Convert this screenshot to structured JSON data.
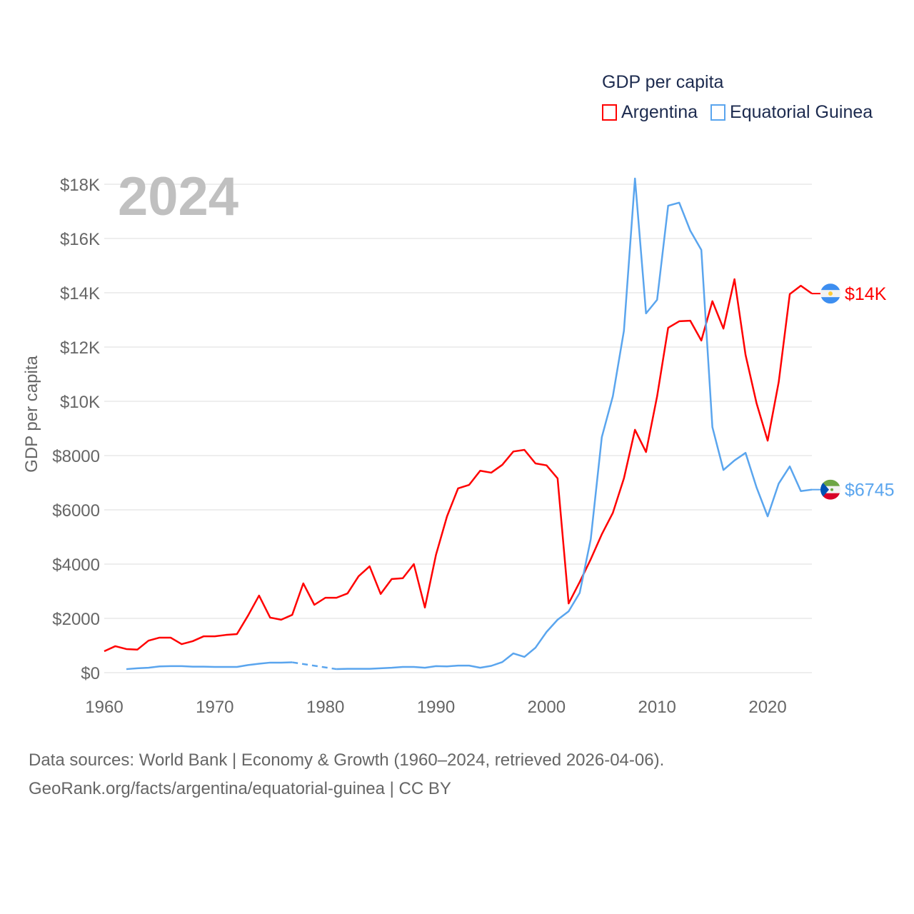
{
  "chart_data": {
    "type": "line",
    "title": "GDP per capita",
    "year_label": "2024",
    "xlabel": "",
    "ylabel": "GDP per capita",
    "xlim": [
      1960,
      2024
    ],
    "ylim": [
      0,
      18000
    ],
    "x_ticks": [
      1960,
      1970,
      1980,
      1990,
      2000,
      2010,
      2020
    ],
    "y_ticks": [
      {
        "value": 0,
        "label": "$0"
      },
      {
        "value": 2000,
        "label": "$2000"
      },
      {
        "value": 4000,
        "label": "$4000"
      },
      {
        "value": 6000,
        "label": "$6000"
      },
      {
        "value": 8000,
        "label": "$8000"
      },
      {
        "value": 10000,
        "label": "$10K"
      },
      {
        "value": 12000,
        "label": "$12K"
      },
      {
        "value": 14000,
        "label": "$14K"
      },
      {
        "value": 16000,
        "label": "$16K"
      },
      {
        "value": 18000,
        "label": "$18K"
      }
    ],
    "grid": true,
    "legend_position": "top-right",
    "series": [
      {
        "name": "Argentina",
        "color": "#ff0000",
        "end_label": "$14K",
        "flag": "argentina-flag",
        "start_year": 1960,
        "values": [
          790,
          975,
          870,
          850,
          1180,
          1290,
          1290,
          1050,
          1160,
          1340,
          1340,
          1390,
          1420,
          2100,
          2840,
          2030,
          1950,
          2130,
          3290,
          2500,
          2760,
          2760,
          2920,
          3550,
          3920,
          2900,
          3450,
          3480,
          4000,
          2400,
          4340,
          5760,
          6790,
          6920,
          7440,
          7370,
          7660,
          8150,
          8210,
          7710,
          7640,
          7160,
          2550,
          3340,
          4180,
          5100,
          5890,
          7160,
          8950,
          8130,
          10180,
          12710,
          12950,
          12970,
          12240,
          13690,
          12680,
          14500,
          11710,
          9920,
          8550,
          10710,
          13950,
          14260,
          13970
        ]
      },
      {
        "name": "Equatorial Guinea",
        "color": "#5aa5ee",
        "end_label": "$6745",
        "flag": "equatorial-guinea-flag",
        "start_year": 1962,
        "values": [
          130,
          160,
          180,
          230,
          240,
          240,
          220,
          220,
          210,
          210,
          210,
          280,
          330,
          370,
          370,
          380,
          null,
          null,
          null,
          130,
          140,
          140,
          140,
          160,
          180,
          210,
          210,
          180,
          240,
          230,
          260,
          260,
          180,
          250,
          390,
          710,
          580,
          920,
          1500,
          1950,
          2260,
          2940,
          4920,
          8680,
          10190,
          12600,
          18210,
          13240,
          13740,
          17210,
          17320,
          16290,
          15580,
          9050,
          7470,
          7820,
          8100,
          6820,
          5760,
          6970,
          7600,
          6690,
          6745
        ]
      }
    ]
  },
  "footer": {
    "line1": "Data sources: World Bank | Economy & Growth (1960–2024, retrieved 2026-04-06).",
    "line2": "GeoRank.org/facts/argentina/equatorial-guinea | CC BY"
  }
}
